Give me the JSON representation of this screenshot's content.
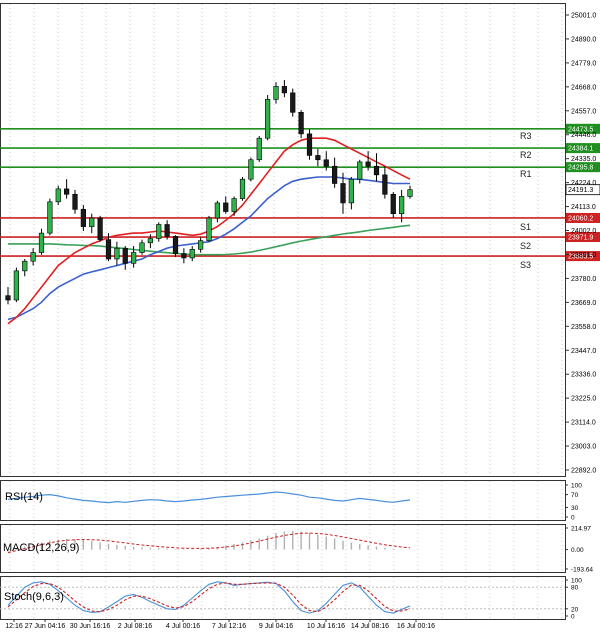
{
  "chart_data": [
    {
      "type": "candlestick",
      "panel": "price",
      "title": "",
      "ylim": [
        22892.0,
        25001.0
      ],
      "y_ticks": [
        "25001.0",
        "24890.0",
        "24779.0",
        "24668.0",
        "24557.0",
        "24446.0",
        "24335.0",
        "24224.0",
        "24113.0",
        "24002.0",
        "23891.0",
        "23780.0",
        "23669.0",
        "23558.0",
        "23447.0",
        "23336.0",
        "23225.0",
        "23114.0",
        "23003.0",
        "22892.0"
      ],
      "x_ticks": [
        "12:16",
        "27 Jun 04:16",
        "30 Jun 16:16",
        "2 Jul 08:16",
        "4 Jul 00:16",
        "7 Jul 12:16",
        "9 Jul 04:16",
        "10 Jul 16:16",
        "14 Jul 08:16",
        "16 Jul 00:16"
      ],
      "last_price": "24191.3",
      "levels": [
        {
          "name": "R3",
          "value": 24473.5,
          "label": "24473.5",
          "color": "#1f8f1f"
        },
        {
          "name": "R2",
          "value": 24384.1,
          "label": "24384.1",
          "color": "#1f8f1f"
        },
        {
          "name": "R1",
          "value": 24295.8,
          "label": "24295.8",
          "color": "#1f8f1f"
        },
        {
          "name": "S1",
          "value": 24060.2,
          "label": "24060.2",
          "color": "#cc2222"
        },
        {
          "name": "S2",
          "value": 23971.9,
          "label": "23971.9",
          "color": "#cc2222"
        },
        {
          "name": "S3",
          "value": 23883.5,
          "label": "23883.5",
          "color": "#cc2222"
        }
      ],
      "candles": [
        [
          23700,
          23740,
          23660,
          23680
        ],
        [
          23680,
          23830,
          23670,
          23815
        ],
        [
          23815,
          23870,
          23790,
          23860
        ],
        [
          23860,
          23920,
          23840,
          23900
        ],
        [
          23900,
          24010,
          23890,
          23990
        ],
        [
          23990,
          24150,
          23980,
          24135
        ],
        [
          24135,
          24210,
          24120,
          24195
        ],
        [
          24195,
          24240,
          24150,
          24170
        ],
        [
          24170,
          24190,
          24080,
          24100
        ],
        [
          24100,
          24120,
          24000,
          24020
        ],
        [
          24020,
          24080,
          23990,
          24060
        ],
        [
          24060,
          24070,
          23950,
          23960
        ],
        [
          23960,
          23990,
          23860,
          23870
        ],
        [
          23870,
          23950,
          23840,
          23920
        ],
        [
          23920,
          23930,
          23820,
          23850
        ],
        [
          23850,
          23930,
          23830,
          23900
        ],
        [
          23900,
          23960,
          23890,
          23945
        ],
        [
          23945,
          23985,
          23920,
          23965
        ],
        [
          23965,
          24040,
          23950,
          24030
        ],
        [
          24030,
          24050,
          23960,
          23975
        ],
        [
          23975,
          23980,
          23880,
          23895
        ],
        [
          23895,
          23920,
          23850,
          23875
        ],
        [
          23875,
          23930,
          23860,
          23915
        ],
        [
          23915,
          23970,
          23900,
          23955
        ],
        [
          23955,
          24070,
          23950,
          24060
        ],
        [
          24060,
          24140,
          24040,
          24130
        ],
        [
          24130,
          24160,
          24080,
          24090
        ],
        [
          24090,
          24160,
          24070,
          24150
        ],
        [
          24150,
          24250,
          24140,
          24240
        ],
        [
          24240,
          24340,
          24230,
          24330
        ],
        [
          24330,
          24440,
          24320,
          24430
        ],
        [
          24430,
          24630,
          24420,
          24610
        ],
        [
          24610,
          24690,
          24590,
          24670
        ],
        [
          24670,
          24700,
          24620,
          24640
        ],
        [
          24640,
          24660,
          24530,
          24550
        ],
        [
          24550,
          24560,
          24430,
          24450
        ],
        [
          24450,
          24470,
          24330,
          24350
        ],
        [
          24350,
          24380,
          24300,
          24330
        ],
        [
          24330,
          24370,
          24280,
          24300
        ],
        [
          24300,
          24340,
          24200,
          24220
        ],
        [
          24220,
          24270,
          24080,
          24130
        ],
        [
          24130,
          24250,
          24100,
          24240
        ],
        [
          24240,
          24330,
          24220,
          24320
        ],
        [
          24320,
          24370,
          24280,
          24300
        ],
        [
          24300,
          24360,
          24230,
          24260
        ],
        [
          24260,
          24300,
          24150,
          24170
        ],
        [
          24170,
          24180,
          24060,
          24080
        ],
        [
          24080,
          24190,
          24040,
          24160
        ],
        [
          24160,
          24210,
          24150,
          24191.3
        ]
      ],
      "ma_red": [
        23570,
        23600,
        23640,
        23690,
        23740,
        23790,
        23840,
        23870,
        23900,
        23920,
        23940,
        23955,
        23970,
        23980,
        23985,
        23990,
        23990,
        23995,
        24000,
        23995,
        23990,
        23985,
        23980,
        23985,
        24000,
        24020,
        24050,
        24080,
        24120,
        24170,
        24220,
        24270,
        24320,
        24370,
        24400,
        24420,
        24430,
        24430,
        24430,
        24420,
        24400,
        24380,
        24360,
        24340,
        24320,
        24300,
        24280,
        24260,
        24240
      ],
      "ma_blue": [
        23590,
        23600,
        23620,
        23640,
        23670,
        23710,
        23740,
        23760,
        23780,
        23800,
        23810,
        23820,
        23830,
        23840,
        23850,
        23860,
        23870,
        23890,
        23905,
        23920,
        23930,
        23935,
        23940,
        23945,
        23950,
        23965,
        23985,
        24010,
        24040,
        24070,
        24110,
        24150,
        24180,
        24210,
        24230,
        24240,
        24245,
        24250,
        24250,
        24250,
        24245,
        24240,
        24240,
        24235,
        24230,
        24225,
        24220,
        24220,
        24220
      ],
      "ma_green": [
        23940,
        23940,
        23940,
        23940,
        23940,
        23940,
        23938,
        23936,
        23935,
        23933,
        23932,
        23930,
        23926,
        23922,
        23918,
        23914,
        23910,
        23906,
        23902,
        23899,
        23896,
        23893,
        23891,
        23890,
        23890,
        23890,
        23891,
        23893,
        23897,
        23902,
        23910,
        23918,
        23927,
        23936,
        23945,
        23953,
        23960,
        23967,
        23973,
        23980,
        23986,
        23991,
        23996,
        24002,
        24007,
        24012,
        24017,
        24022,
        24026
      ]
    },
    {
      "type": "line",
      "panel": "rsi",
      "title": "RSI(14)",
      "ylim": [
        0,
        100
      ],
      "y_ticks": [
        "100",
        "70",
        "30",
        "0"
      ],
      "series": [
        {
          "color": "#4a90d9",
          "values": [
            55,
            58,
            62,
            64,
            68,
            70,
            66,
            60,
            56,
            52,
            50,
            47,
            45,
            48,
            46,
            49,
            52,
            54,
            53,
            50,
            48,
            50,
            53,
            55,
            58,
            62,
            64,
            66,
            68,
            70,
            72,
            75,
            78,
            76,
            72,
            68,
            62,
            60,
            56,
            52,
            50,
            54,
            58,
            55,
            52,
            48,
            46,
            50,
            53
          ]
        }
      ]
    },
    {
      "type": "bar",
      "panel": "macd",
      "title": "MACD(12,26,9)",
      "ylim": [
        -193.64,
        214.97
      ],
      "y_ticks": [
        "214.97",
        "0.00",
        "-193.64"
      ],
      "histogram": [
        -20,
        10,
        30,
        50,
        70,
        90,
        100,
        105,
        100,
        95,
        85,
        72,
        58,
        46,
        36,
        28,
        22,
        18,
        14,
        10,
        6,
        4,
        4,
        8,
        14,
        24,
        38,
        54,
        72,
        92,
        112,
        138,
        165,
        180,
        186,
        180,
        168,
        150,
        130,
        110,
        88,
        70,
        56,
        42,
        30,
        18,
        8,
        2,
        -2
      ],
      "signal": [
        -30,
        -10,
        10,
        30,
        50,
        68,
        82,
        92,
        98,
        100,
        98,
        94,
        86,
        76,
        66,
        56,
        46,
        38,
        30,
        24,
        18,
        14,
        12,
        12,
        14,
        18,
        26,
        36,
        50,
        66,
        84,
        104,
        124,
        140,
        154,
        162,
        164,
        160,
        152,
        140,
        126,
        110,
        94,
        78,
        62,
        48,
        36,
        26,
        18
      ]
    },
    {
      "type": "line",
      "panel": "stoch",
      "title": "Stoch(9,6,3)",
      "ylim": [
        0,
        100
      ],
      "y_ticks": [
        "100",
        "80",
        "20",
        "0"
      ],
      "series": [
        {
          "color": "#4a90d9",
          "values": [
            30,
            55,
            80,
            92,
            95,
            88,
            70,
            50,
            30,
            15,
            10,
            12,
            25,
            40,
            55,
            60,
            52,
            40,
            30,
            20,
            18,
            30,
            50,
            70,
            88,
            95,
            92,
            85,
            88,
            90,
            92,
            94,
            90,
            70,
            40,
            15,
            8,
            15,
            35,
            60,
            85,
            92,
            80,
            55,
            30,
            12,
            8,
            18,
            28
          ]
        },
        {
          "color": "#cc2222",
          "values": [
            25,
            45,
            65,
            82,
            90,
            90,
            80,
            62,
            42,
            25,
            14,
            12,
            18,
            30,
            45,
            55,
            55,
            48,
            38,
            28,
            22,
            26,
            40,
            58,
            76,
            88,
            92,
            88,
            88,
            90,
            91,
            92,
            91,
            80,
            58,
            32,
            15,
            12,
            25,
            45,
            68,
            86,
            85,
            70,
            48,
            26,
            14,
            14,
            20
          ]
        }
      ]
    }
  ]
}
